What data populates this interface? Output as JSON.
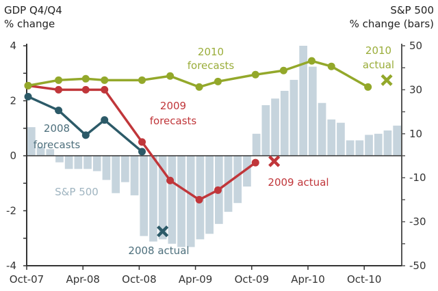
{
  "chart_data": {
    "type": "line+bar",
    "left_title_line1": "GDP Q4/Q4",
    "left_title_line2": "% change",
    "right_title_line1": "S&P 500",
    "right_title_line2": "% change (bars)",
    "x_unit": "months since Oct-07",
    "x_ticks": [
      "Oct-07",
      "Apr-08",
      "Oct-08",
      "Apr-09",
      "Oct-09",
      "Apr-10",
      "Oct-10"
    ],
    "left_ylim": [
      -4,
      4
    ],
    "left_ticks": [
      "4",
      "2",
      "0",
      "-2",
      "-4"
    ],
    "right_ylim": [
      -50,
      50
    ],
    "right_ticks": [
      "50",
      "30",
      "10",
      "-10",
      "-30",
      "-50"
    ],
    "bars": {
      "name": "S&P 500",
      "color": "#c6d4dd",
      "values": [
        13,
        4,
        3,
        -3,
        -6,
        -6,
        -6,
        -7,
        -11,
        -17,
        -12,
        -18,
        -36.5,
        -39,
        -38,
        -40,
        -41.5,
        -41.5,
        -38,
        -35.5,
        -31,
        -25.5,
        -21.5,
        -14,
        10,
        23,
        26,
        29.5,
        34.5,
        50,
        40.5,
        24,
        16.5,
        15,
        7,
        7,
        9.5,
        10,
        11.5,
        13.7
      ]
    },
    "series": [
      {
        "name": "2010 forecasts",
        "color": "#93a82a",
        "x": [
          0.15,
          3.4,
          6.3,
          8.3,
          12.3,
          15.3,
          18.4,
          20.4,
          24.4,
          27.4,
          30.4,
          32.5,
          36.4
        ],
        "values": [
          2.55,
          2.75,
          2.8,
          2.75,
          2.75,
          2.9,
          2.5,
          2.7,
          2.95,
          3.1,
          3.45,
          3.25,
          2.5
        ]
      },
      {
        "name": "2009 forecasts",
        "color": "#c0363a",
        "x": [
          0.15,
          3.4,
          6.3,
          8.3,
          12.3,
          15.3,
          18.4,
          20.4,
          24.4
        ],
        "values": [
          2.55,
          2.4,
          2.4,
          2.4,
          0.5,
          -0.9,
          -1.6,
          -1.25,
          -0.25
        ]
      },
      {
        "name": "2008 forecasts",
        "color": "#2c5a68",
        "x": [
          0.15,
          3.4,
          6.3,
          8.3,
          12.3
        ],
        "values": [
          2.15,
          1.65,
          0.75,
          1.3,
          0.15
        ]
      }
    ],
    "actuals": [
      {
        "name": "2008 actual",
        "x": 14.5,
        "value": -2.75,
        "color": "#2c5a68"
      },
      {
        "name": "2009 actual",
        "x": 26.4,
        "value": -0.2,
        "color": "#c0363a"
      },
      {
        "name": "2010 actual",
        "x": 38.4,
        "value": 2.75,
        "color": "#93a82a"
      }
    ],
    "annotations": {
      "f2010_a": "2010",
      "f2010_b": "forecasts",
      "f2009_a": "2009",
      "f2009_b": "forecasts",
      "f2008_a": "2008",
      "f2008_b": "forecasts",
      "sp500": "S&P 500",
      "a2008": "2008 actual",
      "a2009": "2009 actual",
      "a2010_a": "2010",
      "a2010_b": "actual"
    }
  }
}
